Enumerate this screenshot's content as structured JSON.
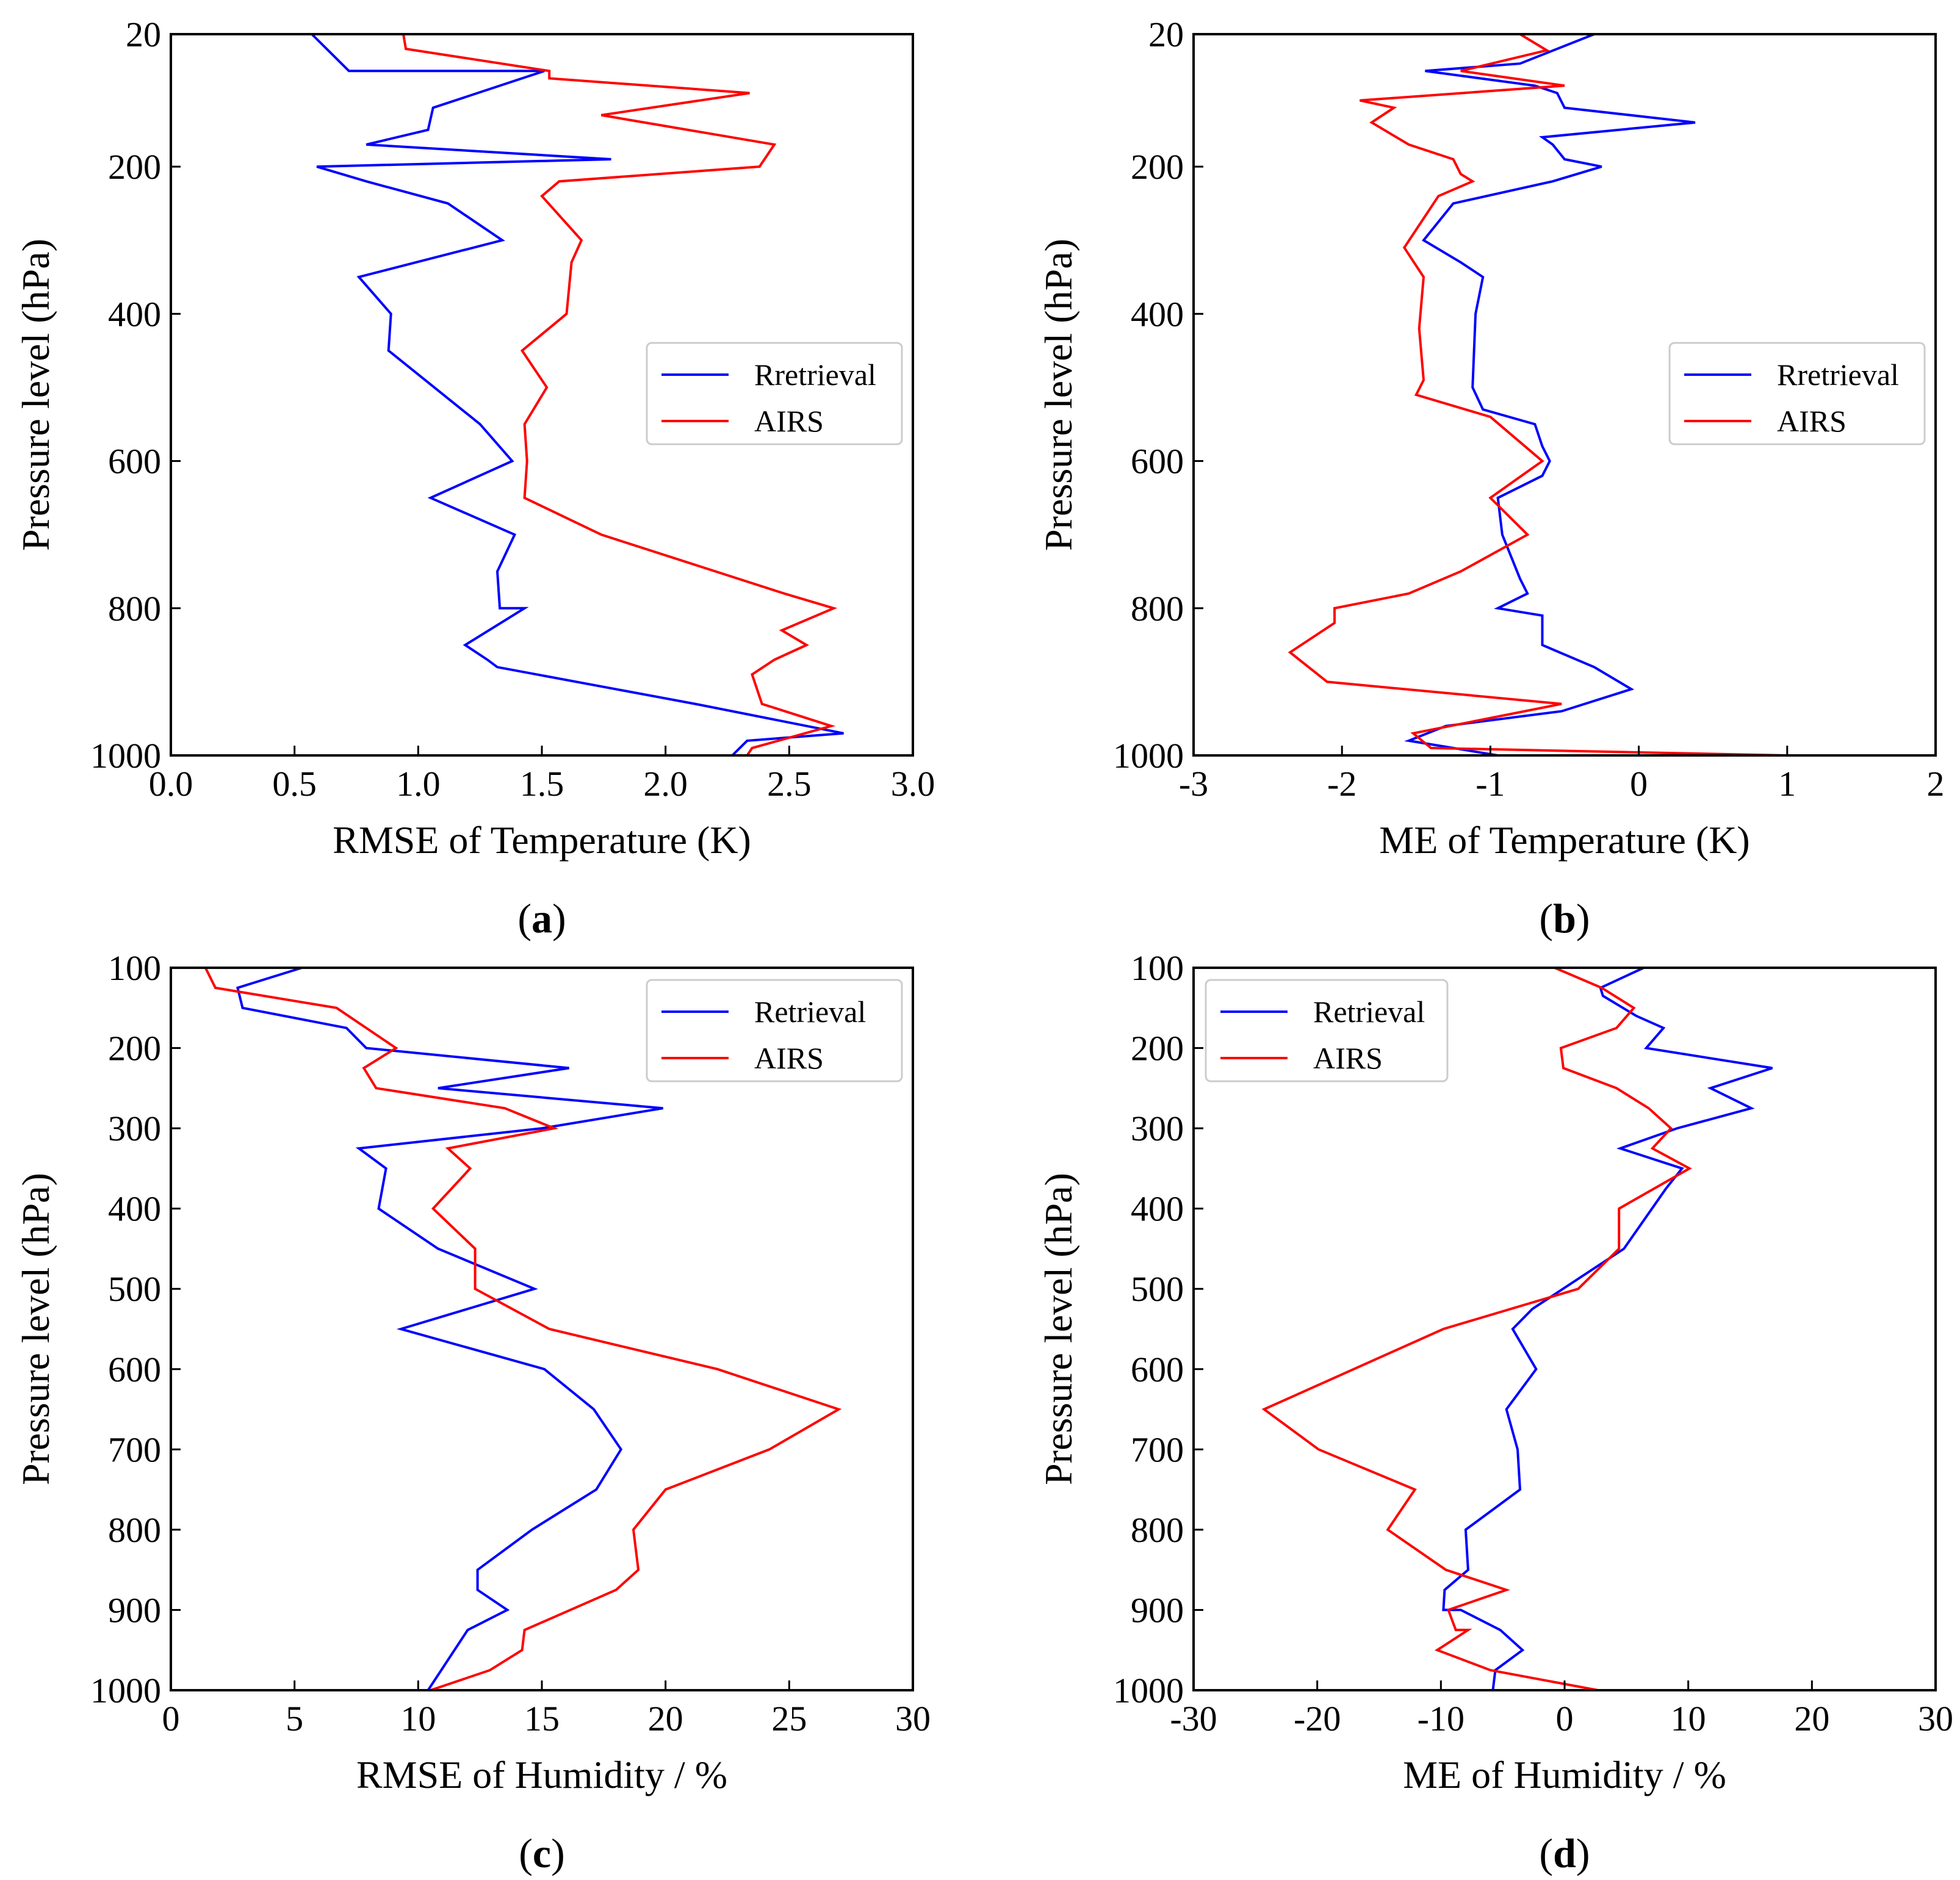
{
  "chart_data": [
    {
      "type": "line",
      "panel_label": "(a)",
      "panel_letter": "a",
      "xlabel": "RMSE of Temperature (K)",
      "ylabel": "Pressure level (hPa)",
      "xlim": [
        0,
        3
      ],
      "ylim": [
        20,
        1000
      ],
      "xticks": [
        "0.0",
        "0.5",
        "1.0",
        "1.5",
        "2.0",
        "2.5",
        "3.0"
      ],
      "xtick_values": [
        0,
        0.5,
        1.0,
        1.5,
        2.0,
        2.5,
        3.0
      ],
      "yticks": [
        "20",
        "200",
        "400",
        "600",
        "800",
        "1000"
      ],
      "ytick_values": [
        20,
        200,
        400,
        600,
        800,
        1000
      ],
      "legend_position": "center-right",
      "series": [
        {
          "name": "Rretrieval",
          "color": "#0000ff",
          "points": [
            [
              0.57,
              20
            ],
            [
              0.72,
              70
            ],
            [
              1.51,
              70
            ],
            [
              1.06,
              120
            ],
            [
              1.04,
              150
            ],
            [
              0.79,
              170
            ],
            [
              1.78,
              190
            ],
            [
              0.59,
              200
            ],
            [
              0.79,
              220
            ],
            [
              1.12,
              250
            ],
            [
              1.34,
              300
            ],
            [
              0.76,
              350
            ],
            [
              0.89,
              400
            ],
            [
              0.88,
              450
            ],
            [
              1.25,
              550
            ],
            [
              1.38,
              600
            ],
            [
              1.05,
              650
            ],
            [
              1.39,
              700
            ],
            [
              1.32,
              750
            ],
            [
              1.33,
              800
            ],
            [
              1.43,
              800
            ],
            [
              1.19,
              850
            ],
            [
              1.28,
              870
            ],
            [
              1.32,
              880
            ],
            [
              2.12,
              930
            ],
            [
              2.72,
              970
            ],
            [
              2.33,
              980
            ],
            [
              2.27,
              1000
            ]
          ]
        },
        {
          "name": "AIRS",
          "color": "#ff0000",
          "points": [
            [
              0.94,
              20
            ],
            [
              0.95,
              40
            ],
            [
              1.53,
              70
            ],
            [
              1.53,
              80
            ],
            [
              2.34,
              100
            ],
            [
              1.74,
              130
            ],
            [
              2.44,
              170
            ],
            [
              2.38,
              200
            ],
            [
              1.57,
              220
            ],
            [
              1.5,
              240
            ],
            [
              1.66,
              300
            ],
            [
              1.62,
              330
            ],
            [
              1.6,
              400
            ],
            [
              1.42,
              450
            ],
            [
              1.52,
              500
            ],
            [
              1.43,
              550
            ],
            [
              1.44,
              600
            ],
            [
              1.43,
              650
            ],
            [
              1.74,
              700
            ],
            [
              2.48,
              780
            ],
            [
              2.68,
              800
            ],
            [
              2.47,
              830
            ],
            [
              2.57,
              850
            ],
            [
              2.44,
              870
            ],
            [
              2.35,
              890
            ],
            [
              2.39,
              930
            ],
            [
              2.67,
              960
            ],
            [
              2.35,
              990
            ],
            [
              2.33,
              1000
            ]
          ]
        }
      ]
    },
    {
      "type": "line",
      "panel_label": "(b)",
      "panel_letter": "b",
      "xlabel": "ME of Temperature (K)",
      "ylabel": "Pressure level (hPa)",
      "xlim": [
        -3,
        2
      ],
      "ylim": [
        20,
        1000
      ],
      "xticks": [
        "-3",
        "-2",
        "-1",
        "0",
        "1",
        "2"
      ],
      "xtick_values": [
        -3,
        -2,
        -1,
        0,
        1,
        2
      ],
      "yticks": [
        "20",
        "200",
        "400",
        "600",
        "800",
        "1000"
      ],
      "ytick_values": [
        20,
        200,
        400,
        600,
        800,
        1000
      ],
      "legend_position": "center-right",
      "series": [
        {
          "name": "Rretrieval",
          "color": "#0000ff",
          "points": [
            [
              -0.3,
              20
            ],
            [
              -0.8,
              60
            ],
            [
              -1.44,
              70
            ],
            [
              -0.7,
              90
            ],
            [
              -0.55,
              100
            ],
            [
              -0.5,
              120
            ],
            [
              0.38,
              140
            ],
            [
              -0.65,
              160
            ],
            [
              -0.58,
              170
            ],
            [
              -0.5,
              190
            ],
            [
              -0.25,
              200
            ],
            [
              -0.58,
              220
            ],
            [
              -1.25,
              250
            ],
            [
              -1.45,
              300
            ],
            [
              -1.2,
              330
            ],
            [
              -1.05,
              350
            ],
            [
              -1.1,
              400
            ],
            [
              -1.12,
              500
            ],
            [
              -1.05,
              530
            ],
            [
              -0.7,
              550
            ],
            [
              -0.65,
              580
            ],
            [
              -0.6,
              600
            ],
            [
              -0.65,
              620
            ],
            [
              -0.95,
              650
            ],
            [
              -0.92,
              700
            ],
            [
              -0.8,
              760
            ],
            [
              -0.75,
              780
            ],
            [
              -0.85,
              790
            ],
            [
              -0.95,
              800
            ],
            [
              -0.65,
              810
            ],
            [
              -0.65,
              850
            ],
            [
              -0.3,
              880
            ],
            [
              -0.05,
              910
            ],
            [
              -0.52,
              940
            ],
            [
              -1.3,
              960
            ],
            [
              -1.55,
              980
            ],
            [
              -1.25,
              990
            ],
            [
              -0.95,
              1000
            ]
          ]
        },
        {
          "name": "AIRS",
          "color": "#ff0000",
          "points": [
            [
              -0.8,
              20
            ],
            [
              -0.62,
              42
            ],
            [
              -1.2,
              70
            ],
            [
              -0.5,
              90
            ],
            [
              -1.88,
              110
            ],
            [
              -1.65,
              120
            ],
            [
              -1.8,
              140
            ],
            [
              -1.55,
              170
            ],
            [
              -1.25,
              190
            ],
            [
              -1.2,
              210
            ],
            [
              -1.12,
              220
            ],
            [
              -1.35,
              240
            ],
            [
              -1.58,
              310
            ],
            [
              -1.45,
              350
            ],
            [
              -1.48,
              420
            ],
            [
              -1.45,
              490
            ],
            [
              -1.5,
              510
            ],
            [
              -1.0,
              540
            ],
            [
              -0.65,
              600
            ],
            [
              -1.0,
              650
            ],
            [
              -0.75,
              700
            ],
            [
              -1.2,
              750
            ],
            [
              -1.55,
              780
            ],
            [
              -2.05,
              800
            ],
            [
              -2.05,
              820
            ],
            [
              -2.35,
              860
            ],
            [
              -2.1,
              900
            ],
            [
              -0.52,
              930
            ],
            [
              -1.52,
              970
            ],
            [
              -1.4,
              990
            ],
            [
              1.0,
              1000
            ]
          ]
        }
      ]
    },
    {
      "type": "line",
      "panel_label": "(c)",
      "panel_letter": "c",
      "xlabel": "RMSE of Humidity / %",
      "ylabel": "Pressure level (hPa)",
      "xlim": [
        0,
        30
      ],
      "ylim": [
        100,
        1000
      ],
      "xticks": [
        "0",
        "5",
        "10",
        "15",
        "20",
        "25",
        "30"
      ],
      "xtick_values": [
        0,
        5,
        10,
        15,
        20,
        25,
        30
      ],
      "yticks": [
        "100",
        "200",
        "300",
        "400",
        "500",
        "600",
        "700",
        "800",
        "900",
        "1000"
      ],
      "ytick_values": [
        100,
        200,
        300,
        400,
        500,
        600,
        700,
        800,
        900,
        1000
      ],
      "legend_position": "top-right",
      "series": [
        {
          "name": "Retrieval",
          "color": "#0000ff",
          "points": [
            [
              5.3,
              100
            ],
            [
              2.7,
              125
            ],
            [
              2.9,
              150
            ],
            [
              7.1,
              175
            ],
            [
              7.9,
              200
            ],
            [
              16.1,
              225
            ],
            [
              10.8,
              250
            ],
            [
              19.9,
              275
            ],
            [
              15.0,
              300
            ],
            [
              7.6,
              325
            ],
            [
              8.7,
              350
            ],
            [
              8.4,
              400
            ],
            [
              10.8,
              450
            ],
            [
              14.7,
              500
            ],
            [
              9.3,
              550
            ],
            [
              15.1,
              600
            ],
            [
              17.1,
              650
            ],
            [
              18.2,
              700
            ],
            [
              17.2,
              750
            ],
            [
              14.6,
              800
            ],
            [
              12.4,
              850
            ],
            [
              12.4,
              875
            ],
            [
              13.6,
              900
            ],
            [
              12.0,
              925
            ],
            [
              10.4,
              1000
            ]
          ]
        },
        {
          "name": "AIRS",
          "color": "#ff0000",
          "points": [
            [
              1.4,
              100
            ],
            [
              1.8,
              125
            ],
            [
              6.7,
              150
            ],
            [
              9.1,
              200
            ],
            [
              7.8,
              225
            ],
            [
              8.3,
              250
            ],
            [
              13.5,
              275
            ],
            [
              15.5,
              300
            ],
            [
              11.2,
              325
            ],
            [
              12.1,
              350
            ],
            [
              10.6,
              400
            ],
            [
              12.3,
              450
            ],
            [
              12.3,
              500
            ],
            [
              15.3,
              550
            ],
            [
              22.1,
              600
            ],
            [
              27.0,
              650
            ],
            [
              24.2,
              700
            ],
            [
              20.0,
              750
            ],
            [
              18.7,
              800
            ],
            [
              18.9,
              850
            ],
            [
              18.0,
              875
            ],
            [
              14.3,
              925
            ],
            [
              14.2,
              950
            ],
            [
              12.9,
              975
            ],
            [
              10.5,
              1000
            ]
          ]
        }
      ]
    },
    {
      "type": "line",
      "panel_label": "(d)",
      "panel_letter": "d",
      "xlabel": "ME of Humidity / %",
      "ylabel": "Pressure level (hPa)",
      "xlim": [
        -30,
        30
      ],
      "ylim": [
        100,
        1000
      ],
      "xticks": [
        "-30",
        "-20",
        "-10",
        "0",
        "10",
        "20",
        "30"
      ],
      "xtick_values": [
        -30,
        -20,
        -10,
        0,
        10,
        20,
        30
      ],
      "yticks": [
        "100",
        "200",
        "300",
        "400",
        "500",
        "600",
        "700",
        "800",
        "900",
        "1000"
      ],
      "ytick_values": [
        100,
        200,
        300,
        400,
        500,
        600,
        700,
        800,
        900,
        1000
      ],
      "legend_position": "top-left",
      "series": [
        {
          "name": "Retrieval",
          "color": "#0000ff",
          "points": [
            [
              6.4,
              100
            ],
            [
              2.9,
              125
            ],
            [
              3.1,
              135
            ],
            [
              5.8,
              160
            ],
            [
              8.0,
              175
            ],
            [
              6.6,
              200
            ],
            [
              16.8,
              225
            ],
            [
              11.8,
              250
            ],
            [
              15.1,
              275
            ],
            [
              9.1,
              300
            ],
            [
              4.5,
              325
            ],
            [
              9.5,
              350
            ],
            [
              8.2,
              375
            ],
            [
              4.8,
              450
            ],
            [
              -2.6,
              525
            ],
            [
              -4.2,
              550
            ],
            [
              -2.3,
              600
            ],
            [
              -4.7,
              650
            ],
            [
              -3.8,
              700
            ],
            [
              -3.6,
              750
            ],
            [
              -8.0,
              800
            ],
            [
              -7.8,
              850
            ],
            [
              -9.7,
              875
            ],
            [
              -9.8,
              900
            ],
            [
              -8.4,
              900
            ],
            [
              -5.2,
              925
            ],
            [
              -3.4,
              950
            ],
            [
              -5.6,
              975
            ],
            [
              -5.8,
              1000
            ]
          ]
        },
        {
          "name": "AIRS",
          "color": "#ff0000",
          "points": [
            [
              -0.8,
              100
            ],
            [
              3.0,
              125
            ],
            [
              5.6,
              150
            ],
            [
              4.2,
              175
            ],
            [
              -0.3,
              200
            ],
            [
              -0.1,
              225
            ],
            [
              4.2,
              250
            ],
            [
              6.8,
              275
            ],
            [
              8.6,
              300
            ],
            [
              7.1,
              325
            ],
            [
              10.1,
              350
            ],
            [
              4.4,
              400
            ],
            [
              4.4,
              450
            ],
            [
              1.1,
              500
            ],
            [
              -9.8,
              550
            ],
            [
              -24.3,
              650
            ],
            [
              -19.9,
              700
            ],
            [
              -12.1,
              750
            ],
            [
              -14.3,
              800
            ],
            [
              -9.6,
              850
            ],
            [
              -4.7,
              875
            ],
            [
              -9.4,
              900
            ],
            [
              -8.8,
              925
            ],
            [
              -7.8,
              925
            ],
            [
              -10.3,
              950
            ],
            [
              -6.0,
              975
            ],
            [
              2.7,
              1000
            ]
          ]
        }
      ]
    }
  ]
}
